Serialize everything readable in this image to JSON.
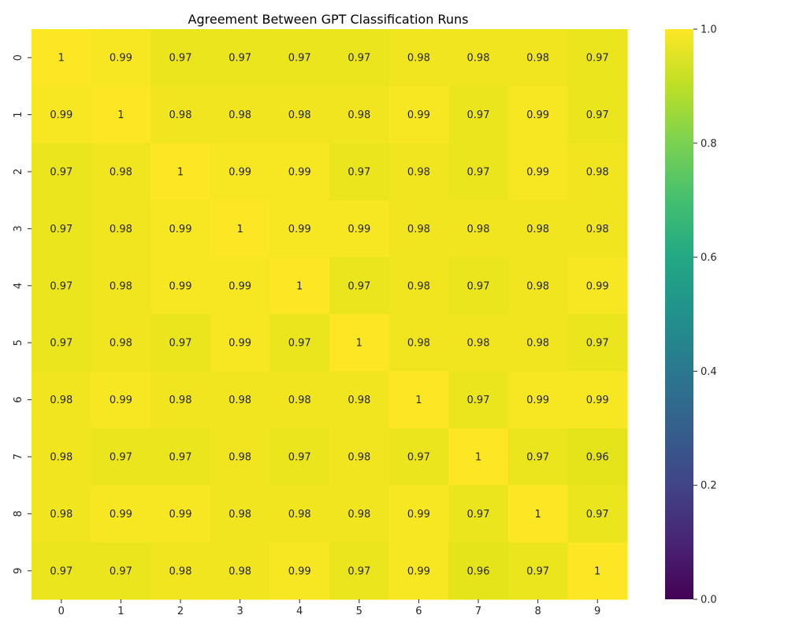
{
  "chart_data": {
    "type": "heatmap",
    "title": "Agreement Between GPT Classification Runs",
    "x_labels": [
      "0",
      "1",
      "2",
      "3",
      "4",
      "5",
      "6",
      "7",
      "8",
      "9"
    ],
    "y_labels": [
      "0",
      "1",
      "2",
      "3",
      "4",
      "5",
      "6",
      "7",
      "8",
      "9"
    ],
    "values": [
      [
        1.0,
        0.99,
        0.97,
        0.97,
        0.97,
        0.97,
        0.98,
        0.98,
        0.98,
        0.97
      ],
      [
        0.99,
        1.0,
        0.98,
        0.98,
        0.98,
        0.98,
        0.99,
        0.97,
        0.99,
        0.97
      ],
      [
        0.97,
        0.98,
        1.0,
        0.99,
        0.99,
        0.97,
        0.98,
        0.97,
        0.99,
        0.98
      ],
      [
        0.97,
        0.98,
        0.99,
        1.0,
        0.99,
        0.99,
        0.98,
        0.98,
        0.98,
        0.98
      ],
      [
        0.97,
        0.98,
        0.99,
        0.99,
        1.0,
        0.97,
        0.98,
        0.97,
        0.98,
        0.99
      ],
      [
        0.97,
        0.98,
        0.97,
        0.99,
        0.97,
        1.0,
        0.98,
        0.98,
        0.98,
        0.97
      ],
      [
        0.98,
        0.99,
        0.98,
        0.98,
        0.98,
        0.98,
        1.0,
        0.97,
        0.99,
        0.99
      ],
      [
        0.98,
        0.97,
        0.97,
        0.98,
        0.97,
        0.98,
        0.97,
        1.0,
        0.97,
        0.96
      ],
      [
        0.98,
        0.99,
        0.99,
        0.98,
        0.98,
        0.98,
        0.99,
        0.97,
        1.0,
        0.97
      ],
      [
        0.97,
        0.97,
        0.98,
        0.98,
        0.99,
        0.97,
        0.99,
        0.96,
        0.97,
        1.0
      ]
    ],
    "annotations": [
      [
        "1",
        "0.99",
        "0.97",
        "0.97",
        "0.97",
        "0.97",
        "0.98",
        "0.98",
        "0.98",
        "0.97"
      ],
      [
        "0.99",
        "1",
        "0.98",
        "0.98",
        "0.98",
        "0.98",
        "0.99",
        "0.97",
        "0.99",
        "0.97"
      ],
      [
        "0.97",
        "0.98",
        "1",
        "0.99",
        "0.99",
        "0.97",
        "0.98",
        "0.97",
        "0.99",
        "0.98"
      ],
      [
        "0.97",
        "0.98",
        "0.99",
        "1",
        "0.99",
        "0.99",
        "0.98",
        "0.98",
        "0.98",
        "0.98"
      ],
      [
        "0.97",
        "0.98",
        "0.99",
        "0.99",
        "1",
        "0.97",
        "0.98",
        "0.97",
        "0.98",
        "0.99"
      ],
      [
        "0.97",
        "0.98",
        "0.97",
        "0.99",
        "0.97",
        "1",
        "0.98",
        "0.98",
        "0.98",
        "0.97"
      ],
      [
        "0.98",
        "0.99",
        "0.98",
        "0.98",
        "0.98",
        "0.98",
        "1",
        "0.97",
        "0.99",
        "0.99"
      ],
      [
        "0.98",
        "0.97",
        "0.97",
        "0.98",
        "0.97",
        "0.98",
        "0.97",
        "1",
        "0.97",
        "0.96"
      ],
      [
        "0.98",
        "0.99",
        "0.99",
        "0.98",
        "0.98",
        "0.98",
        "0.99",
        "0.97",
        "1",
        "0.97"
      ],
      [
        "0.97",
        "0.97",
        "0.98",
        "0.98",
        "0.99",
        "0.97",
        "0.99",
        "0.96",
        "0.97",
        "1"
      ]
    ],
    "colormap": "viridis",
    "vmin": 0.0,
    "vmax": 1.0,
    "colorbar_ticks": [
      "0.0",
      "0.2",
      "0.4",
      "0.6",
      "0.8",
      "1.0"
    ],
    "colorbar_tick_values": [
      0.0,
      0.2,
      0.4,
      0.6,
      0.8,
      1.0
    ],
    "grid": false
  }
}
